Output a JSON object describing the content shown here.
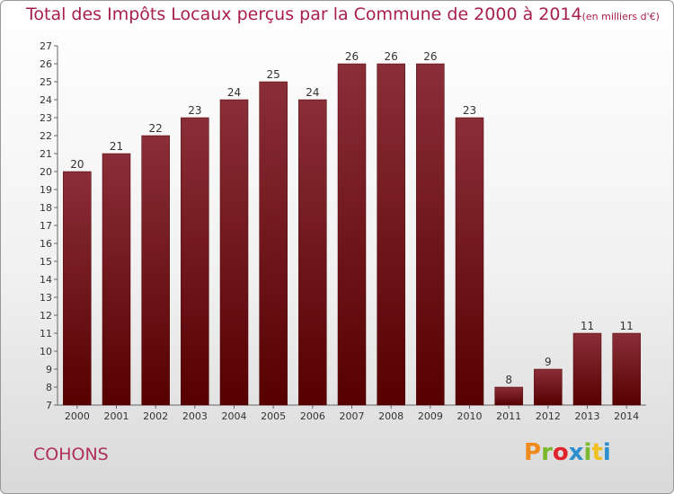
{
  "header": {
    "title": "Total des Impôts Locaux perçus par la Commune de 2000 à 2014",
    "unit": "(en milliers d'€)"
  },
  "footer": {
    "commune": "COHONS",
    "logo_text": "Proxiti",
    "logo_colors": [
      "#f08a1c",
      "#7ab82e",
      "#e0232a",
      "#2e8fd0",
      "#7ab82e",
      "#f0c020",
      "#2e8fd0"
    ]
  },
  "colors": {
    "bar_top": "#8a2e38",
    "bar_bottom": "#560000",
    "title": "#a8204a"
  },
  "chart_data": {
    "type": "bar",
    "categories": [
      "2000",
      "2001",
      "2002",
      "2003",
      "2004",
      "2005",
      "2006",
      "2007",
      "2008",
      "2009",
      "2010",
      "2011",
      "2012",
      "2013",
      "2014"
    ],
    "values": [
      20,
      21,
      22,
      23,
      24,
      25,
      24,
      26,
      26,
      26,
      23,
      8,
      9,
      11,
      11
    ],
    "ylim": [
      7,
      27
    ],
    "ytick_step": 1,
    "grid": false,
    "data_labels": true
  }
}
